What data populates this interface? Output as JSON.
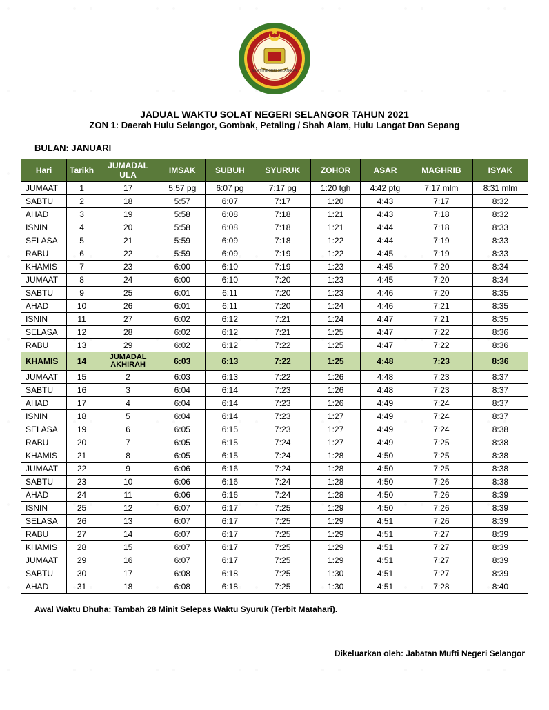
{
  "header": {
    "title1": "JADUAL WAKTU SOLAT NEGERI SELANGOR TAHUN 2021",
    "title2": "ZON 1: Daerah Hulu Selangor, Gombak, Petaling / Shah Alam, Hulu Langat Dan Sepang",
    "bulan_label": "BULAN: JANUARI"
  },
  "logo": {
    "outer_ring": "#3a7a2a",
    "inner_ring": "#d4b830",
    "red": "#b31b1b",
    "gold": "#f0c830"
  },
  "table": {
    "header_bg": "#5a7a3a",
    "header_fg": "#ffffff",
    "highlight_bg": "#c8dba8",
    "columns": [
      "Hari",
      "Tarikh",
      "JUMADAL ULA",
      "IMSAK",
      "SUBUH",
      "SYURUK",
      "ZOHOR",
      "ASAR",
      "MAGHRIB",
      "ISYAK"
    ],
    "highlight_row_index": 13,
    "rows": [
      [
        "JUMAAT",
        "1",
        "17",
        "5:57 pg",
        "6:07 pg",
        "7:17 pg",
        "1:20 tgh",
        "4:42 ptg",
        "7:17 mlm",
        "8:31 mlm"
      ],
      [
        "SABTU",
        "2",
        "18",
        "5:57",
        "6:07",
        "7:17",
        "1:20",
        "4:43",
        "7:17",
        "8:32"
      ],
      [
        "AHAD",
        "3",
        "19",
        "5:58",
        "6:08",
        "7:18",
        "1:21",
        "4:43",
        "7:18",
        "8:32"
      ],
      [
        "ISNIN",
        "4",
        "20",
        "5:58",
        "6:08",
        "7:18",
        "1:21",
        "4:44",
        "7:18",
        "8:33"
      ],
      [
        "SELASA",
        "5",
        "21",
        "5:59",
        "6:09",
        "7:18",
        "1:22",
        "4:44",
        "7:19",
        "8:33"
      ],
      [
        "RABU",
        "6",
        "22",
        "5:59",
        "6:09",
        "7:19",
        "1:22",
        "4:45",
        "7:19",
        "8:33"
      ],
      [
        "KHAMIS",
        "7",
        "23",
        "6:00",
        "6:10",
        "7:19",
        "1:23",
        "4:45",
        "7:20",
        "8:34"
      ],
      [
        "JUMAAT",
        "8",
        "24",
        "6:00",
        "6:10",
        "7:20",
        "1:23",
        "4:45",
        "7:20",
        "8:34"
      ],
      [
        "SABTU",
        "9",
        "25",
        "6:01",
        "6:11",
        "7:20",
        "1:23",
        "4:46",
        "7:20",
        "8:35"
      ],
      [
        "AHAD",
        "10",
        "26",
        "6:01",
        "6:11",
        "7:20",
        "1:24",
        "4:46",
        "7:21",
        "8:35"
      ],
      [
        "ISNIN",
        "11",
        "27",
        "6:02",
        "6:12",
        "7:21",
        "1:24",
        "4:47",
        "7:21",
        "8:35"
      ],
      [
        "SELASA",
        "12",
        "28",
        "6:02",
        "6:12",
        "7:21",
        "1:25",
        "4:47",
        "7:22",
        "8:36"
      ],
      [
        "RABU",
        "13",
        "29",
        "6:02",
        "6:12",
        "7:22",
        "1:25",
        "4:47",
        "7:22",
        "8:36"
      ],
      [
        "KHAMIS",
        "14",
        "JUMADAL\nAKHIRAH",
        "6:03",
        "6:13",
        "7:22",
        "1:25",
        "4:48",
        "7:23",
        "8:36"
      ],
      [
        "JUMAAT",
        "15",
        "2",
        "6:03",
        "6:13",
        "7:22",
        "1:26",
        "4:48",
        "7:23",
        "8:37"
      ],
      [
        "SABTU",
        "16",
        "3",
        "6:04",
        "6:14",
        "7:23",
        "1:26",
        "4:48",
        "7:23",
        "8:37"
      ],
      [
        "AHAD",
        "17",
        "4",
        "6:04",
        "6:14",
        "7:23",
        "1:26",
        "4:49",
        "7:24",
        "8:37"
      ],
      [
        "ISNIN",
        "18",
        "5",
        "6:04",
        "6:14",
        "7:23",
        "1:27",
        "4:49",
        "7:24",
        "8:37"
      ],
      [
        "SELASA",
        "19",
        "6",
        "6:05",
        "6:15",
        "7:23",
        "1:27",
        "4:49",
        "7:24",
        "8:38"
      ],
      [
        "RABU",
        "20",
        "7",
        "6:05",
        "6:15",
        "7:24",
        "1:27",
        "4:49",
        "7:25",
        "8:38"
      ],
      [
        "KHAMIS",
        "21",
        "8",
        "6:05",
        "6:15",
        "7:24",
        "1:28",
        "4:50",
        "7:25",
        "8:38"
      ],
      [
        "JUMAAT",
        "22",
        "9",
        "6:06",
        "6:16",
        "7:24",
        "1:28",
        "4:50",
        "7:25",
        "8:38"
      ],
      [
        "SABTU",
        "23",
        "10",
        "6:06",
        "6:16",
        "7:24",
        "1:28",
        "4:50",
        "7:26",
        "8:38"
      ],
      [
        "AHAD",
        "24",
        "11",
        "6:06",
        "6:16",
        "7:24",
        "1:28",
        "4:50",
        "7:26",
        "8:39"
      ],
      [
        "ISNIN",
        "25",
        "12",
        "6:07",
        "6:17",
        "7:25",
        "1:29",
        "4:50",
        "7:26",
        "8:39"
      ],
      [
        "SELASA",
        "26",
        "13",
        "6:07",
        "6:17",
        "7:25",
        "1:29",
        "4:51",
        "7:26",
        "8:39"
      ],
      [
        "RABU",
        "27",
        "14",
        "6:07",
        "6:17",
        "7:25",
        "1:29",
        "4:51",
        "7:27",
        "8:39"
      ],
      [
        "KHAMIS",
        "28",
        "15",
        "6:07",
        "6:17",
        "7:25",
        "1:29",
        "4:51",
        "7:27",
        "8:39"
      ],
      [
        "JUMAAT",
        "29",
        "16",
        "6:07",
        "6:17",
        "7:25",
        "1:29",
        "4:51",
        "7:27",
        "8:39"
      ],
      [
        "SABTU",
        "30",
        "17",
        "6:08",
        "6:18",
        "7:25",
        "1:30",
        "4:51",
        "7:27",
        "8:39"
      ],
      [
        "AHAD",
        "31",
        "18",
        "6:08",
        "6:18",
        "7:25",
        "1:30",
        "4:51",
        "7:28",
        "8:40"
      ]
    ]
  },
  "footnote": "Awal Waktu Dhuha: Tambah 28 Minit Selepas Waktu Syuruk (Terbit Matahari).",
  "issuer": "Dikeluarkan oleh: Jabatan Mufti Negeri Selangor"
}
